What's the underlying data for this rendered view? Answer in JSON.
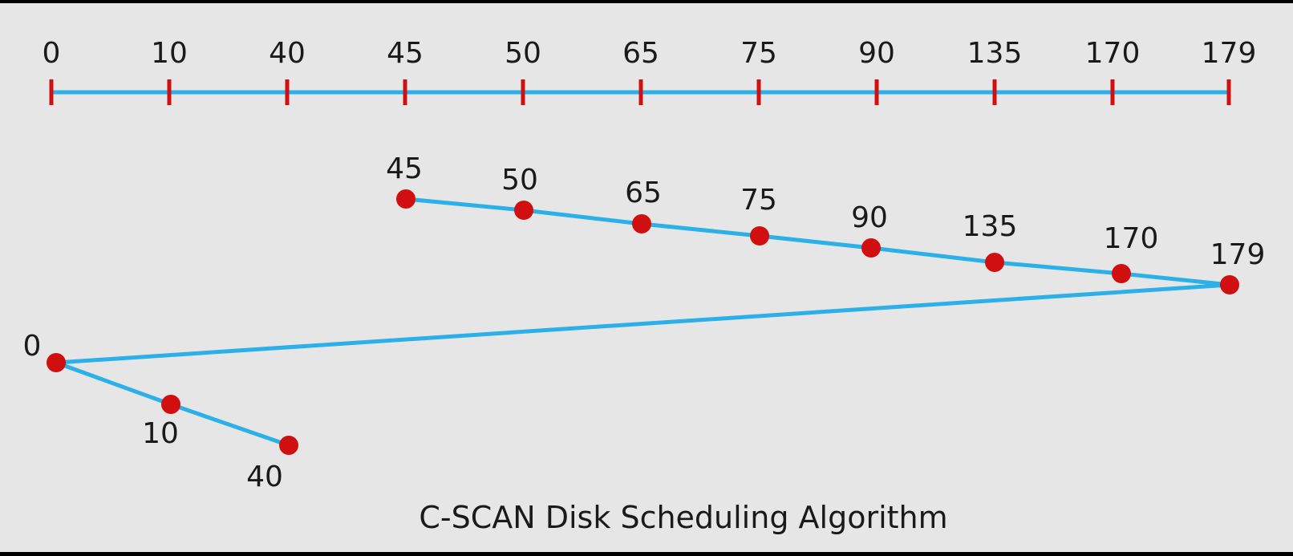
{
  "title": "C-SCAN Disk Scheduling Algorithm",
  "axis_ticks": [
    "0",
    "10",
    "40",
    "45",
    "50",
    "65",
    "75",
    "90",
    "135",
    "170",
    "179"
  ],
  "path_points": [
    "45",
    "50",
    "65",
    "75",
    "90",
    "135",
    "170",
    "179",
    "0",
    "10",
    "40"
  ],
  "colors": {
    "background": "#e6e6e6",
    "line": "#2bb0e8",
    "marker": "#d01010",
    "text": "#1a1a1a"
  }
}
